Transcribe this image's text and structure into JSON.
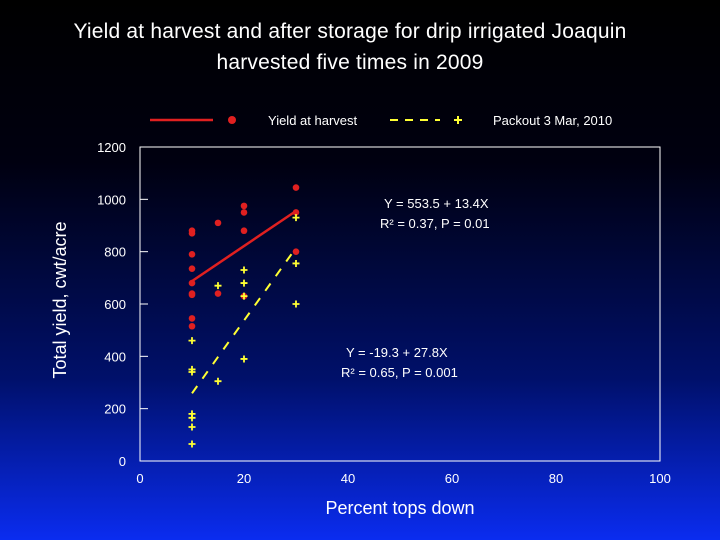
{
  "slide": {
    "title_line1": "Yield at harvest and after storage for drip irrigated Joaquin",
    "title_line2": "harvested five times in 2009"
  },
  "colors": {
    "harvest": "#e02020",
    "packout": "#ffff33",
    "plot_border": "#ffffff"
  },
  "chart_data": {
    "type": "scatter",
    "xlabel": "Percent tops down",
    "ylabel": "Total yield, cwt/acre",
    "xlim": [
      0,
      100
    ],
    "ylim": [
      0,
      1200
    ],
    "x_ticks": [
      0,
      20,
      40,
      60,
      80,
      100
    ],
    "y_ticks": [
      0,
      200,
      400,
      600,
      800,
      1000,
      1200
    ],
    "grid": false,
    "legend_position": "top",
    "series": [
      {
        "name": "Yield at harvest",
        "marker": "circle",
        "line_style": "solid",
        "color": "#e02020",
        "points": [
          [
            10,
            880
          ],
          [
            10,
            870
          ],
          [
            10,
            790
          ],
          [
            10,
            735
          ],
          [
            10,
            680
          ],
          [
            10,
            640
          ],
          [
            10,
            635
          ],
          [
            10,
            545
          ],
          [
            10,
            515
          ],
          [
            15,
            910
          ],
          [
            15,
            640
          ],
          [
            20,
            975
          ],
          [
            20,
            950
          ],
          [
            20,
            880
          ],
          [
            20,
            630
          ],
          [
            30,
            1045
          ],
          [
            30,
            950
          ],
          [
            30,
            800
          ]
        ],
        "fit": {
          "intercept": 553.5,
          "slope": 13.4,
          "x_range": [
            10,
            30
          ]
        }
      },
      {
        "name": "Packout 3 Mar, 2010",
        "marker": "plus",
        "line_style": "dashed",
        "color": "#ffff33",
        "points": [
          [
            10,
            460
          ],
          [
            10,
            350
          ],
          [
            10,
            340
          ],
          [
            10,
            180
          ],
          [
            10,
            165
          ],
          [
            10,
            130
          ],
          [
            10,
            65
          ],
          [
            15,
            670
          ],
          [
            15,
            305
          ],
          [
            20,
            730
          ],
          [
            20,
            680
          ],
          [
            20,
            630
          ],
          [
            20,
            390
          ],
          [
            30,
            930
          ],
          [
            30,
            755
          ],
          [
            30,
            600
          ]
        ],
        "fit": {
          "intercept": -19.3,
          "slope": 27.8,
          "x_range": [
            10,
            30
          ]
        }
      }
    ],
    "annotations": {
      "harvest_eq": "Y = 553.5 + 13.4X",
      "harvest_stats": "R² = 0.37, P = 0.01",
      "packout_eq": "Y = -19.3 + 27.8X",
      "packout_stats": "R² = 0.65, P = 0.001"
    }
  }
}
